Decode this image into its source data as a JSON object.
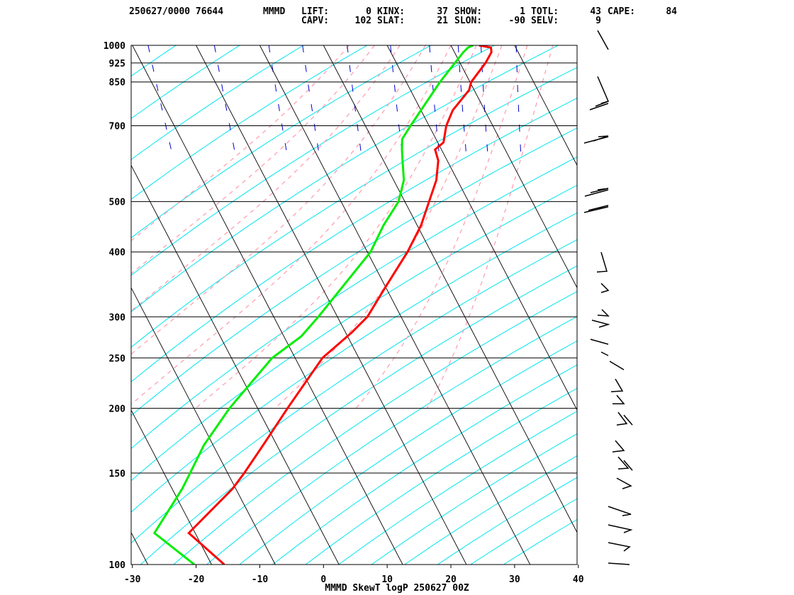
{
  "header": {
    "id": "250627/0000 76644",
    "station": "MMMD",
    "row1": [
      {
        "key": "LIFT:",
        "value": "0"
      },
      {
        "key": "KINX:",
        "value": "37"
      },
      {
        "key": "SHOW:",
        "value": "1"
      },
      {
        "key": "TOTL:",
        "value": "43"
      },
      {
        "key": "CAPE:",
        "value": "84"
      }
    ],
    "row2": [
      {
        "key": "CAPV:",
        "value": "102"
      },
      {
        "key": "SLAT:",
        "value": "21"
      },
      {
        "key": "SLON:",
        "value": "-90"
      },
      {
        "key": "SELV:",
        "value": "9"
      }
    ]
  },
  "chart_data": {
    "type": "line",
    "title": "MMMD SkewT logP 250627 00Z",
    "xlabel": "",
    "ylabel": "",
    "xlim": [
      -30,
      40
    ],
    "ylim": [
      1000,
      100
    ],
    "y_scale": "log",
    "x_ticks": [
      -30,
      -20,
      -10,
      0,
      10,
      20,
      30,
      40
    ],
    "x_tick_labels": [
      "-30",
      "-20",
      "-10",
      "0",
      "10",
      "20",
      "30",
      "40"
    ],
    "pressure_levels": [
      100,
      150,
      200,
      250,
      300,
      400,
      500,
      700,
      850,
      925,
      1000
    ],
    "pressure_labels": [
      "100",
      "150",
      "200",
      "250",
      "300",
      "400",
      "500",
      "700",
      "850",
      "925",
      "1000"
    ],
    "colors": {
      "temperature": "#ff0000",
      "dewpoint": "#00ee00",
      "isotherm": "#000000",
      "dry_adiabat": "#00e5ee",
      "moist_adiabat": "#ffa0b0",
      "mixing_ratio": "#0000cc",
      "frame": "#000000",
      "wind_barb": "#000000"
    },
    "series": [
      {
        "key": "temperature",
        "points": [
          {
            "p": 1000,
            "t": 24.4
          },
          {
            "p": 990,
            "t": 26.1
          },
          {
            "p": 970,
            "t": 25.8
          },
          {
            "p": 925,
            "t": 24.0
          },
          {
            "p": 850,
            "t": 20.2
          },
          {
            "p": 820,
            "t": 19.2
          },
          {
            "p": 750,
            "t": 15.0
          },
          {
            "p": 700,
            "t": 12.7
          },
          {
            "p": 650,
            "t": 10.9
          },
          {
            "p": 630,
            "t": 9.0
          },
          {
            "p": 600,
            "t": 8.6
          },
          {
            "p": 550,
            "t": 6.7
          },
          {
            "p": 500,
            "t": 3.8
          },
          {
            "p": 450,
            "t": 0.6
          },
          {
            "p": 400,
            "t": -3.7
          },
          {
            "p": 340,
            "t": -10.3
          },
          {
            "p": 300,
            "t": -15.3
          },
          {
            "p": 280,
            "t": -19.0
          },
          {
            "p": 250,
            "t": -25.7
          },
          {
            "p": 200,
            "t": -35.3
          },
          {
            "p": 170,
            "t": -42.1
          },
          {
            "p": 150,
            "t": -47.4
          },
          {
            "p": 140,
            "t": -50.5
          },
          {
            "p": 115,
            "t": -61.0
          },
          {
            "p": 100,
            "t": -58.0
          }
        ]
      },
      {
        "key": "dewpoint",
        "points": [
          {
            "p": 1000,
            "t": 23.5
          },
          {
            "p": 990,
            "t": 22.5
          },
          {
            "p": 970,
            "t": 21.4
          },
          {
            "p": 925,
            "t": 19.2
          },
          {
            "p": 850,
            "t": 15.3
          },
          {
            "p": 750,
            "t": 10.0
          },
          {
            "p": 700,
            "t": 7.1
          },
          {
            "p": 660,
            "t": 4.7
          },
          {
            "p": 630,
            "t": 3.8
          },
          {
            "p": 600,
            "t": 3.0
          },
          {
            "p": 550,
            "t": 1.6
          },
          {
            "p": 500,
            "t": -1.0
          },
          {
            "p": 450,
            "t": -5.3
          },
          {
            "p": 400,
            "t": -9.5
          },
          {
            "p": 300,
            "t": -23.0
          },
          {
            "p": 275,
            "t": -27.3
          },
          {
            "p": 250,
            "t": -33.6
          },
          {
            "p": 200,
            "t": -44.4
          },
          {
            "p": 170,
            "t": -51.4
          },
          {
            "p": 150,
            "t": -55.9
          },
          {
            "p": 140,
            "t": -58.4
          },
          {
            "p": 115,
            "t": -66.4
          },
          {
            "p": 100,
            "t": -62.7
          }
        ]
      }
    ]
  }
}
